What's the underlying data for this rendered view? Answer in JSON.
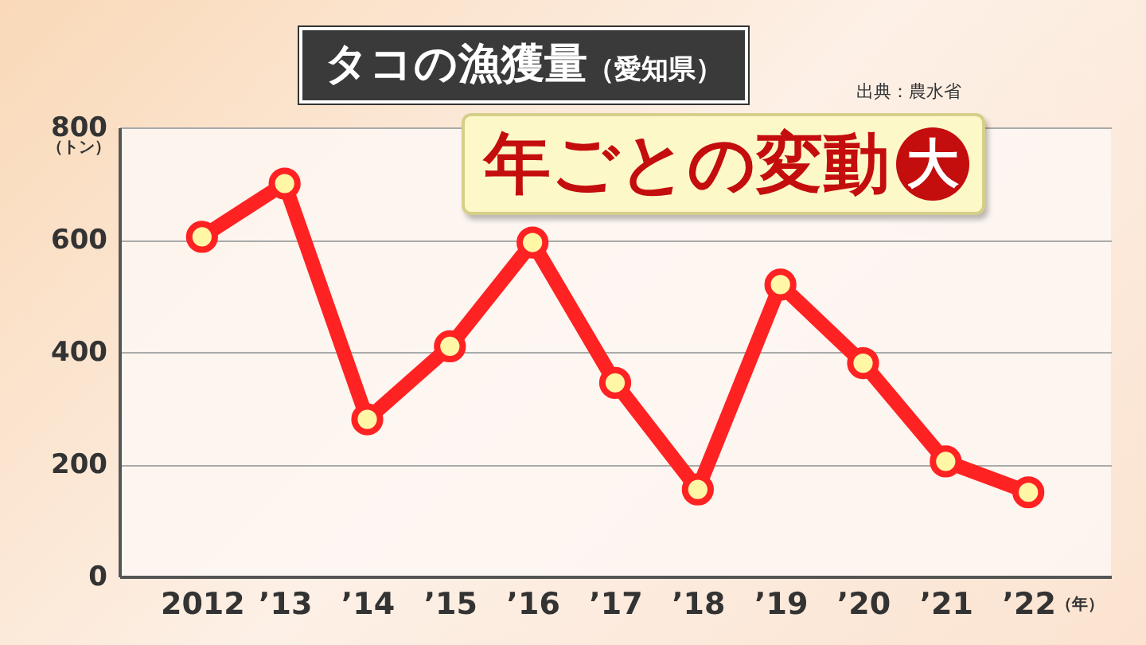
{
  "chart_data": {
    "type": "line",
    "title": "タコの漁獲量（愛知県）",
    "ylabel": "（トン）",
    "xlabel": "（年）",
    "annotations": [
      "出典：農水省",
      "年ごとの変動大"
    ],
    "categories": [
      "2012",
      "’13",
      "’14",
      "’15",
      "’16",
      "’17",
      "’18",
      "’19",
      "’20",
      "’21",
      "’22"
    ],
    "series": [
      {
        "color": "#ff2222",
        "values": [
          605,
          700,
          280,
          410,
          595,
          345,
          155,
          520,
          380,
          205,
          150
        ]
      }
    ],
    "ylim": [
      0,
      800
    ],
    "yticks": [
      0,
      200,
      400,
      600,
      800
    ],
    "grid": "y",
    "legend": false,
    "marker": "circle",
    "line_style": "solid"
  }
}
